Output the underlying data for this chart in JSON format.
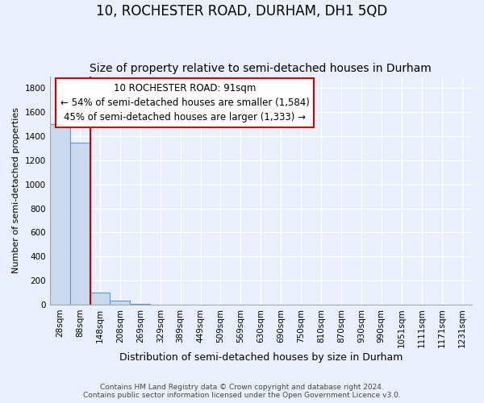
{
  "title": "10, ROCHESTER ROAD, DURHAM, DH1 5QD",
  "subtitle": "Size of property relative to semi-detached houses in Durham",
  "xlabel": "Distribution of semi-detached houses by size in Durham",
  "ylabel": "Number of semi-detached properties",
  "footnote1": "Contains HM Land Registry data © Crown copyright and database right 2024.",
  "footnote2": "Contains public sector information licensed under the Open Government Licence v3.0.",
  "categories": [
    "28sqm",
    "88sqm",
    "148sqm",
    "208sqm",
    "269sqm",
    "329sqm",
    "389sqm",
    "449sqm",
    "509sqm",
    "569sqm",
    "630sqm",
    "690sqm",
    "750sqm",
    "810sqm",
    "870sqm",
    "930sqm",
    "990sqm",
    "1051sqm",
    "1111sqm",
    "1171sqm",
    "1231sqm"
  ],
  "values": [
    1500,
    1350,
    100,
    35,
    5,
    1,
    0,
    0,
    0,
    0,
    0,
    0,
    0,
    0,
    0,
    0,
    0,
    0,
    0,
    0,
    0
  ],
  "bar_color": "#c9d9f0",
  "bar_edge_color": "#5b9bd5",
  "red_line_x": 1.52,
  "annotation_text": "10 ROCHESTER ROAD: 91sqm\n← 54% of semi-detached houses are smaller (1,584)\n45% of semi-detached houses are larger (1,333) →",
  "annotation_box_color": "#ffffff",
  "annotation_box_edge_color": "#cc0000",
  "ylim": [
    0,
    1900
  ],
  "yticks": [
    0,
    200,
    400,
    600,
    800,
    1000,
    1200,
    1400,
    1600,
    1800
  ],
  "background_color": "#eaf0fb",
  "plot_background_color": "#eaf0fb",
  "grid_color": "#d0d8e8",
  "title_fontsize": 12,
  "subtitle_fontsize": 10,
  "xlabel_fontsize": 9,
  "ylabel_fontsize": 8,
  "tick_fontsize": 7.5,
  "annotation_fontsize": 8.5
}
